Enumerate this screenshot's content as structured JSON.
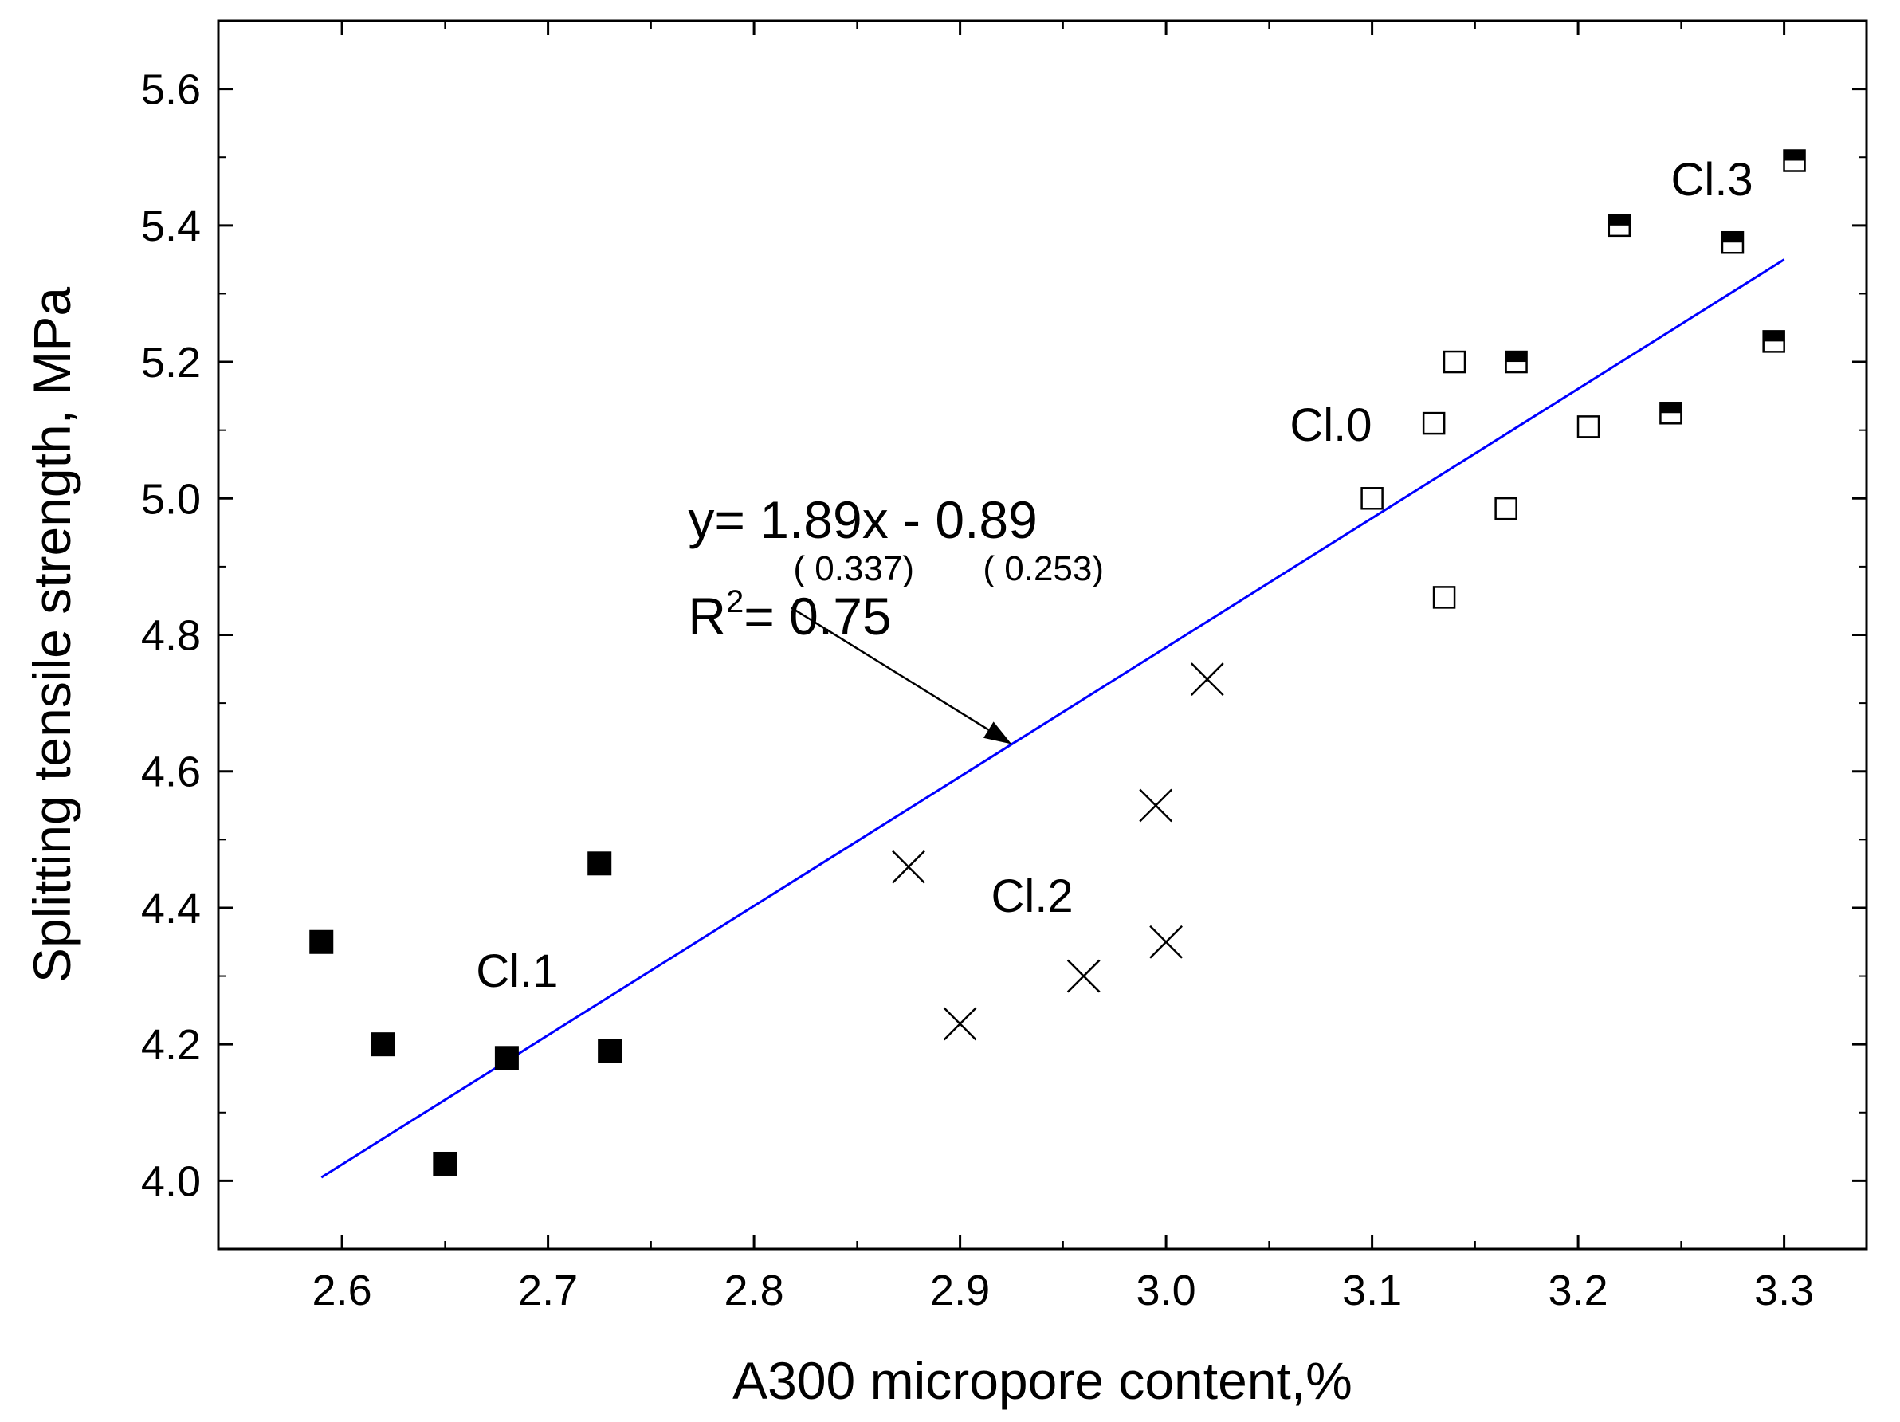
{
  "chart_data": {
    "type": "scatter",
    "title": "",
    "xlabel": "A300 micropore content,%",
    "ylabel": "Splitting tensile strength, MPa",
    "xlim": [
      2.54,
      3.34
    ],
    "ylim": [
      3.9,
      5.7
    ],
    "x_ticks": [
      2.6,
      2.7,
      2.8,
      2.9,
      3.0,
      3.1,
      3.2,
      3.3
    ],
    "x_tick_labels": [
      "2.6",
      "2.7",
      "2.8",
      "2.9",
      "3.0",
      "3.1",
      "3.2",
      "3.3"
    ],
    "y_ticks": [
      4.0,
      4.2,
      4.4,
      4.6,
      4.8,
      5.0,
      5.2,
      5.4,
      5.6
    ],
    "y_tick_labels": [
      "4.0",
      "4.2",
      "4.4",
      "4.6",
      "4.8",
      "5.0",
      "5.2",
      "5.4",
      "5.6"
    ],
    "grid": false,
    "series": [
      {
        "name": "Cl.1",
        "marker": "filled-square",
        "points": [
          [
            2.59,
            4.35
          ],
          [
            2.62,
            4.2
          ],
          [
            2.65,
            4.025
          ],
          [
            2.68,
            4.18
          ],
          [
            2.725,
            4.465
          ],
          [
            2.73,
            4.19
          ]
        ]
      },
      {
        "name": "Cl.2",
        "marker": "x",
        "points": [
          [
            2.875,
            4.46
          ],
          [
            2.9,
            4.23
          ],
          [
            2.96,
            4.3
          ],
          [
            2.995,
            4.55
          ],
          [
            3.0,
            4.35
          ],
          [
            3.02,
            4.735
          ]
        ]
      },
      {
        "name": "Cl.0",
        "marker": "open-square",
        "points": [
          [
            3.1,
            5.0
          ],
          [
            3.13,
            5.11
          ],
          [
            3.135,
            4.855
          ],
          [
            3.14,
            5.2
          ],
          [
            3.165,
            4.985
          ],
          [
            3.205,
            5.105
          ]
        ]
      },
      {
        "name": "Cl.3",
        "marker": "half-filled-square",
        "points": [
          [
            3.17,
            5.2
          ],
          [
            3.22,
            5.4
          ],
          [
            3.245,
            5.125
          ],
          [
            3.275,
            5.375
          ],
          [
            3.295,
            5.23
          ],
          [
            3.305,
            5.495
          ]
        ]
      }
    ],
    "fit_line": {
      "color": "#0000ff",
      "x_range": [
        2.59,
        3.3
      ],
      "slope": 1.89,
      "intercept": -0.89,
      "start_y": 4.005,
      "end_y": 5.35
    },
    "annotations": {
      "equation": "y=  1.89x - 0.89",
      "slope_se": "( 0.337)",
      "intercept_se": "( 0.253)",
      "r_squared_prefix": "R",
      "r_squared_exp": "2",
      "r_squared_value": "= 0.75",
      "arrow_tip": [
        2.925,
        4.64
      ]
    },
    "class_labels": [
      {
        "text": "Cl.0",
        "x": 3.08,
        "y": 5.11
      },
      {
        "text": "Cl.1",
        "x": 2.685,
        "y": 4.31
      },
      {
        "text": "Cl.2",
        "x": 2.935,
        "y": 4.42
      },
      {
        "text": "Cl.3",
        "x": 3.265,
        "y": 5.47
      }
    ],
    "colors": {
      "axes": "#000000",
      "markers": "#000000",
      "fit": "#0000ff",
      "background": "#ffffff"
    }
  }
}
